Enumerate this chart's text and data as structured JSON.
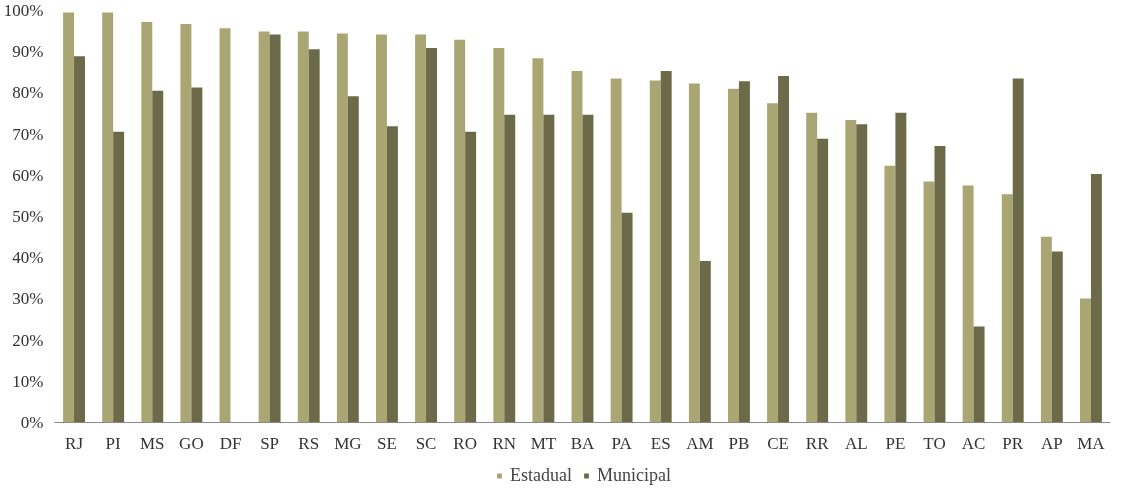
{
  "chart_data": {
    "type": "bar",
    "categories": [
      "RJ",
      "PI",
      "MS",
      "GO",
      "DF",
      "SP",
      "RS",
      "MG",
      "SE",
      "SC",
      "RO",
      "RN",
      "MT",
      "BA",
      "PA",
      "ES",
      "AM",
      "PB",
      "CE",
      "RR",
      "AL",
      "PE",
      "TO",
      "AC",
      "PR",
      "AP",
      "MA"
    ],
    "series": [
      {
        "name": "Estadual",
        "color": "#a9a674",
        "values": [
          99.5,
          99.5,
          97.2,
          96.7,
          95.7,
          94.9,
          94.9,
          94.4,
          94.2,
          94.2,
          92.9,
          90.9,
          88.4,
          85.3,
          83.5,
          83.0,
          82.3,
          81.0,
          77.5,
          75.2,
          73.4,
          62.3,
          58.5,
          57.5,
          55.4,
          45.1,
          30.1
        ]
      },
      {
        "name": "Municipal",
        "color": "#6c6a48",
        "values": [
          88.9,
          70.6,
          80.5,
          81.3,
          null,
          94.2,
          90.6,
          79.2,
          71.9,
          90.9,
          70.6,
          74.7,
          74.7,
          74.7,
          50.9,
          85.3,
          39.2,
          82.8,
          84.1,
          68.9,
          72.4,
          75.2,
          67.1,
          23.3,
          83.5,
          41.5,
          60.3
        ]
      }
    ],
    "ylim": [
      0,
      100
    ],
    "yticks": [
      {
        "value": 0,
        "label": "0%"
      },
      {
        "value": 10,
        "label": "10%"
      },
      {
        "value": 20,
        "label": "20%"
      },
      {
        "value": 30,
        "label": "30%"
      },
      {
        "value": 40,
        "label": "40%"
      },
      {
        "value": 50,
        "label": "50%"
      },
      {
        "value": 60,
        "label": "60%"
      },
      {
        "value": 70,
        "label": "70%"
      },
      {
        "value": 80,
        "label": "80%"
      },
      {
        "value": 90,
        "label": "90%"
      },
      {
        "value": 100,
        "label": "100%"
      }
    ],
    "grid": false,
    "legend": "bottom"
  }
}
